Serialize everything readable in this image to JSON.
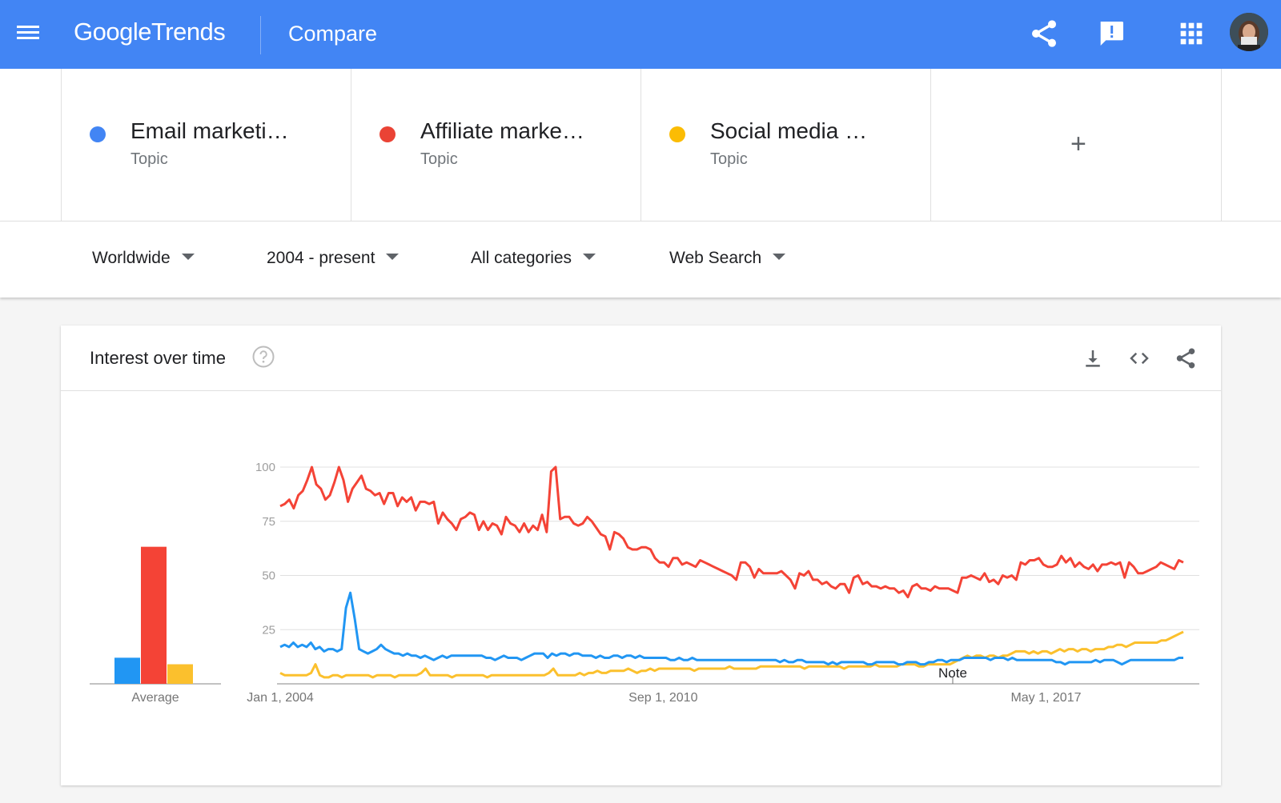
{
  "header": {
    "logo_google": "Google",
    "logo_trends": "Trends",
    "page_title": "Compare",
    "icons": [
      "menu-icon",
      "share-icon",
      "feedback-icon",
      "apps-icon",
      "avatar"
    ]
  },
  "terms": [
    {
      "name": "Email marketi…",
      "type": "Topic",
      "color": "#4285f4"
    },
    {
      "name": "Affiliate marke…",
      "type": "Topic",
      "color": "#ea4335"
    },
    {
      "name": "Social media …",
      "type": "Topic",
      "color": "#fbbc04"
    }
  ],
  "add_term_label": "+",
  "filters": {
    "region": "Worldwide",
    "time": "2004 - present",
    "category": "All categories",
    "search_type": "Web Search"
  },
  "card": {
    "title": "Interest over time",
    "icons": [
      "help-icon",
      "download-icon",
      "embed-icon",
      "share-icon"
    ]
  },
  "chart_data": [
    {
      "type": "bar",
      "xlabel": "Average",
      "categories": [
        "Email marketing",
        "Affiliate marketing",
        "Social media"
      ],
      "values": [
        12,
        63,
        9
      ],
      "colors": [
        "#2196f3",
        "#f44336",
        "#fbc02d"
      ]
    },
    {
      "type": "line",
      "ylim": [
        0,
        100
      ],
      "yticks": [
        "100",
        "75",
        "50",
        "25"
      ],
      "xticks": [
        "Jan 1, 2004",
        "Sep 1, 2010",
        "May 1, 2017"
      ],
      "annotation": "Note",
      "x_range": [
        "2004-01",
        "2020-01"
      ],
      "series": [
        {
          "color": "#f44336",
          "values": [
            82,
            83,
            85,
            81,
            87,
            89,
            94,
            100,
            92,
            90,
            85,
            87,
            93,
            100,
            94,
            84,
            90,
            93,
            96,
            90,
            89,
            87,
            88,
            83,
            88,
            88,
            82,
            86,
            84,
            86,
            80,
            84,
            84,
            83,
            84,
            74,
            79,
            76,
            74,
            71,
            76,
            77,
            79,
            78,
            71,
            75,
            71,
            74,
            73,
            69,
            77,
            74,
            73,
            70,
            74,
            70,
            73,
            71,
            78,
            70,
            98,
            100,
            76,
            77,
            77,
            74,
            73,
            74,
            77,
            75,
            72,
            69,
            68,
            62,
            70,
            69,
            67,
            63,
            62,
            62,
            63,
            63,
            62,
            58,
            56,
            56,
            54,
            58,
            58,
            55,
            56,
            55,
            54,
            57,
            56,
            55,
            54,
            53,
            52,
            51,
            50,
            48,
            56,
            56,
            54,
            49,
            53,
            51,
            51,
            51,
            51,
            52,
            50,
            48,
            44,
            51,
            50,
            52,
            48,
            48,
            46,
            47,
            45,
            44,
            46,
            46,
            42,
            49,
            50,
            46,
            47,
            45,
            45,
            44,
            45,
            44,
            44,
            42,
            43,
            40,
            45,
            46,
            44,
            44,
            43,
            45,
            44,
            44,
            44,
            43,
            42,
            49,
            49,
            50,
            49,
            48,
            51,
            47,
            48,
            46,
            50,
            49,
            50,
            48,
            56,
            55,
            57,
            57,
            58,
            55,
            54,
            54,
            55,
            59,
            56,
            58,
            54,
            56,
            54,
            53,
            55,
            52,
            55,
            55,
            56,
            55,
            56,
            49,
            56,
            54,
            51,
            51,
            52,
            53,
            54,
            56,
            55,
            54,
            53,
            57,
            56
          ]
        },
        {
          "color": "#2196f3",
          "values": [
            17,
            18,
            17,
            19,
            17,
            18,
            17,
            19,
            16,
            17,
            15,
            16,
            16,
            15,
            16,
            35,
            42,
            30,
            16,
            15,
            14,
            15,
            16,
            18,
            16,
            15,
            14,
            14,
            13,
            14,
            13,
            13,
            12,
            13,
            12,
            11,
            12,
            13,
            12,
            13,
            13,
            13,
            13,
            13,
            13,
            13,
            13,
            12,
            12,
            11,
            12,
            13,
            12,
            12,
            12,
            11,
            12,
            13,
            14,
            14,
            14,
            12,
            14,
            13,
            14,
            14,
            13,
            14,
            14,
            13,
            13,
            13,
            12,
            13,
            12,
            12,
            13,
            13,
            12,
            13,
            13,
            12,
            13,
            12,
            12,
            12,
            12,
            12,
            12,
            11,
            11,
            12,
            11,
            11,
            12,
            11,
            11,
            11,
            11,
            11,
            11,
            11,
            11,
            11,
            11,
            11,
            11,
            11,
            11,
            11,
            11,
            11,
            11,
            11,
            10,
            11,
            10,
            10,
            11,
            11,
            10,
            10,
            10,
            10,
            10,
            9,
            10,
            9,
            10,
            10,
            10,
            10,
            10,
            10,
            9,
            9,
            10,
            10,
            10,
            10,
            10,
            9,
            9,
            10,
            10,
            10,
            9,
            9,
            10,
            10,
            11,
            11,
            10,
            11,
            11,
            11,
            12,
            12,
            12,
            12,
            12,
            12,
            11,
            12,
            12,
            12,
            11,
            12,
            11,
            11,
            11,
            11,
            11,
            11,
            11,
            11,
            11,
            10,
            10,
            9,
            10,
            10,
            10,
            10,
            10,
            10,
            11,
            10,
            11,
            11,
            11,
            10,
            9,
            10,
            11,
            11,
            11,
            11,
            11,
            11,
            11,
            11,
            11,
            11,
            11,
            12,
            12
          ]
        },
        {
          "color": "#fbc02d",
          "values": [
            5,
            4,
            4,
            4,
            4,
            4,
            4,
            5,
            9,
            4,
            3,
            3,
            4,
            4,
            3,
            4,
            4,
            4,
            4,
            4,
            4,
            3,
            4,
            4,
            4,
            4,
            3,
            4,
            4,
            4,
            4,
            4,
            5,
            7,
            4,
            4,
            4,
            4,
            4,
            3,
            4,
            4,
            4,
            4,
            4,
            4,
            4,
            3,
            4,
            4,
            4,
            4,
            4,
            4,
            4,
            4,
            4,
            4,
            4,
            4,
            4,
            5,
            7,
            4,
            4,
            4,
            4,
            4,
            5,
            4,
            5,
            5,
            6,
            5,
            5,
            6,
            6,
            6,
            6,
            7,
            6,
            5,
            6,
            6,
            7,
            6,
            7,
            7,
            7,
            7,
            7,
            7,
            7,
            7,
            6,
            7,
            7,
            7,
            7,
            7,
            7,
            7,
            8,
            7,
            7,
            7,
            7,
            7,
            7,
            8,
            8,
            8,
            8,
            8,
            8,
            8,
            8,
            8,
            8,
            7,
            8,
            8,
            8,
            8,
            8,
            8,
            8,
            8,
            7,
            8,
            8,
            8,
            8,
            8,
            8,
            9,
            8,
            8,
            8,
            8,
            8,
            9,
            9,
            9,
            9,
            8,
            8,
            9,
            9,
            9,
            9,
            9,
            9,
            10,
            11,
            12,
            13,
            12,
            13,
            13,
            12,
            13,
            13,
            12,
            13,
            13,
            14,
            15,
            15,
            15,
            14,
            15,
            14,
            15,
            15,
            14,
            15,
            16,
            15,
            16,
            16,
            15,
            16,
            16,
            15,
            16,
            16,
            16,
            17,
            17,
            18,
            18,
            17,
            18,
            19,
            19,
            19,
            19,
            19,
            19,
            20,
            20,
            21,
            22,
            23,
            24
          ]
        }
      ]
    }
  ]
}
